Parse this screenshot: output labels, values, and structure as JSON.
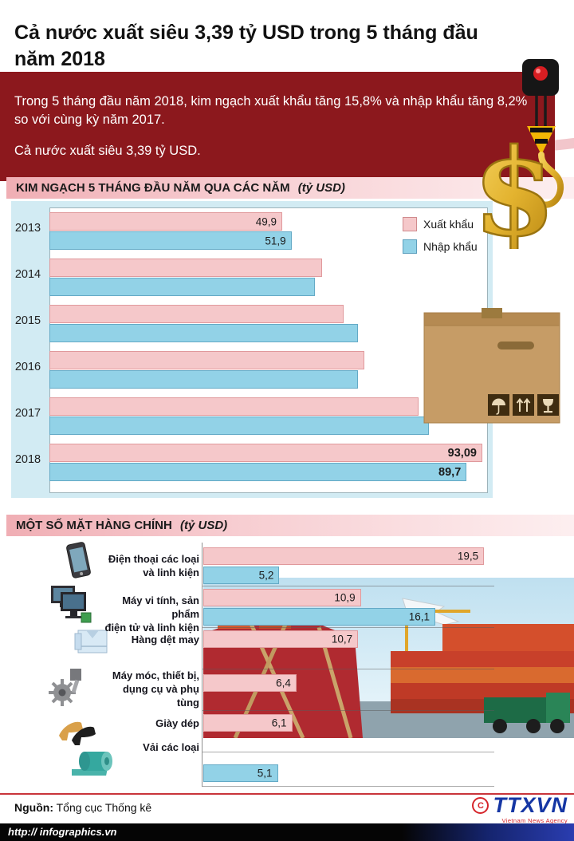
{
  "header": {
    "title": "Cả nước xuất siêu 3,39 tỷ USD trong 5 tháng đầu năm 2018"
  },
  "intro": {
    "line1": "Trong 5 tháng đầu năm 2018, kim ngạch xuất khẩu tăng 15,8% và nhập khẩu tăng 8,2% so với cùng kỳ năm 2017.",
    "line2": "Cả nước xuất siêu 3,39 tỷ USD."
  },
  "colors": {
    "export_pink": "#f5c8ca",
    "import_blue": "#92d2e7",
    "maroon_banner": "#8c181d",
    "panel_blue": "#d2ebf3",
    "accent_red": "#c9353b",
    "gold": "#d9a21b",
    "ttxvn_blue": "#1536a4"
  },
  "chart1": {
    "title": "KIM NGẠCH 5 THÁNG ĐẦU NĂM QUA CÁC NĂM",
    "unit": "(tỷ USD)",
    "legend": {
      "export": "Xuất khẩu",
      "import": "Nhập khẩu"
    },
    "years": [
      {
        "year": "2013",
        "export": 49.9,
        "import": 51.9,
        "export_label": "49,9",
        "import_label": "51,9"
      },
      {
        "year": "2014",
        "export": 58.5,
        "import": 56.9,
        "export_label": "",
        "import_label": ""
      },
      {
        "year": "2015",
        "export": 63.2,
        "import": 66.2,
        "export_label": "",
        "import_label": ""
      },
      {
        "year": "2016",
        "export": 67.7,
        "import": 66.3,
        "export_label": "",
        "import_label": ""
      },
      {
        "year": "2017",
        "export": 79.3,
        "import": 81.5,
        "export_label": "",
        "import_label": ""
      },
      {
        "year": "2018",
        "export": 93.09,
        "import": 89.7,
        "export_label": "93,09",
        "import_label": "89,7"
      }
    ]
  },
  "chart2": {
    "title": "MỘT SỐ MẶT HÀNG CHÍNH",
    "unit": "(tỷ USD)",
    "items": [
      {
        "label": "Điện thoại các loại và linh kiện",
        "lines": [
          "Điện thoại các loại",
          "và linh kiện"
        ],
        "export": 19.5,
        "export_label": "19,5",
        "import": 5.2,
        "import_label": "5,2"
      },
      {
        "label": "Máy vi tính, sản phẩm điện tử và linh kiện",
        "lines": [
          "Máy vi tính, sản phẩm",
          "điện tử và linh kiện"
        ],
        "export": 10.9,
        "export_label": "10,9",
        "import": 16.1,
        "import_label": "16,1"
      },
      {
        "label": "Hàng dệt may",
        "lines": [
          "Hàng dệt may"
        ],
        "export": 10.7,
        "export_label": "10,7"
      },
      {
        "label": "Máy móc, thiết bị, dụng cụ và phụ tùng",
        "lines": [
          "Máy móc, thiết bị,",
          "dụng cụ và phụ tùng"
        ],
        "export": 6.4,
        "export_label": "6,4"
      },
      {
        "label": "Giày dép",
        "lines": [
          "Giày dép"
        ],
        "export": 6.1,
        "export_label": "6,1"
      },
      {
        "label": "Vải các loại",
        "lines": [
          "Vải các loại"
        ],
        "import": 5.1,
        "import_label": "5,1"
      }
    ]
  },
  "chart_data": [
    {
      "type": "bar",
      "orientation": "horizontal",
      "title": "KIM NGẠCH 5 THÁNG ĐẦU NĂM QUA CÁC NĂM (tỷ USD)",
      "categories": [
        "2013",
        "2014",
        "2015",
        "2016",
        "2017",
        "2018"
      ],
      "series": [
        {
          "name": "Xuất khẩu",
          "values": [
            49.9,
            58.5,
            63.2,
            67.7,
            79.3,
            93.09
          ]
        },
        {
          "name": "Nhập khẩu",
          "values": [
            51.9,
            56.9,
            66.2,
            66.3,
            81.5,
            89.7
          ]
        }
      ],
      "value_labels_shown": {
        "2013": [
          "49,9",
          "51,9"
        ],
        "2018": [
          "93,09",
          "89,7"
        ]
      },
      "unlabeled_categories_estimated": [
        "2014",
        "2015",
        "2016",
        "2017"
      ],
      "xlim": [
        0,
        95
      ],
      "grid": false,
      "legend_position": "top-right"
    },
    {
      "type": "bar",
      "orientation": "horizontal",
      "title": "MỘT SỐ MẶT HÀNG CHÍNH (tỷ USD)",
      "categories": [
        "Điện thoại các loại và linh kiện",
        "Máy vi tính, sản phẩm điện tử và linh kiện",
        "Hàng dệt may",
        "Máy móc, thiết bị, dụng cụ và phụ tùng",
        "Giày dép",
        "Vải các loại"
      ],
      "series": [
        {
          "name": "Xuất khẩu",
          "values": [
            19.5,
            10.9,
            10.7,
            6.4,
            6.1,
            null
          ]
        },
        {
          "name": "Nhập khẩu",
          "values": [
            5.2,
            16.1,
            null,
            null,
            null,
            5.1
          ]
        }
      ],
      "xlim": [
        0,
        20.5
      ],
      "grid": false,
      "legend_position": "none"
    }
  ],
  "source": {
    "prefix": "Nguồn:",
    "name": "Tổng cục Thống kê"
  },
  "footer": {
    "url": "http:// infographics.vn",
    "agency": "TTXVN",
    "agency_sub": "Vietnam News Agency",
    "copyright_symbol": "C"
  }
}
